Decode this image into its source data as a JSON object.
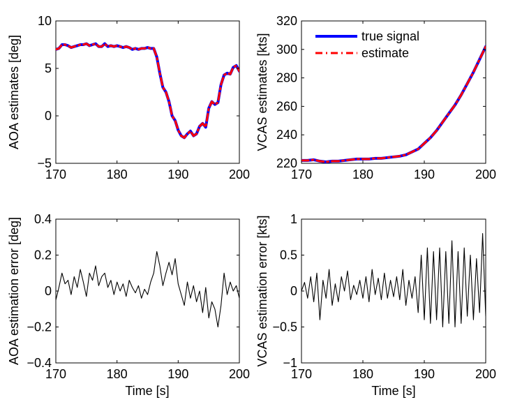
{
  "chart_data": [
    {
      "id": "aoa-estimates",
      "type": "line",
      "xlabel": "",
      "ylabel": "AOA estimates [deg]",
      "xlim": [
        170,
        200
      ],
      "ylim": [
        -5,
        10
      ],
      "xticks": [
        170,
        180,
        190,
        200
      ],
      "yticks": [
        -5,
        0,
        5,
        10
      ],
      "series": [
        {
          "name": "true signal",
          "color": "#0000ff",
          "style": "solid",
          "x": [
            170,
            170.5,
            171,
            171.5,
            172,
            172.5,
            173,
            173.5,
            174,
            174.5,
            175,
            175.5,
            176,
            176.5,
            177,
            177.5,
            178,
            178.5,
            179,
            179.5,
            180,
            180.5,
            181,
            181.5,
            182,
            182.5,
            183,
            183.5,
            184,
            184.5,
            185,
            185.5,
            186,
            186.5,
            187,
            187.5,
            188,
            188.5,
            189,
            189.5,
            190,
            190.5,
            191,
            191.5,
            192,
            192.5,
            193,
            193.5,
            194,
            194.5,
            195,
            195.5,
            196,
            196.5,
            197,
            197.5,
            198,
            198.5,
            199,
            199.5,
            200
          ],
          "y": [
            7.0,
            7.1,
            7.5,
            7.5,
            7.4,
            7.2,
            7.3,
            7.4,
            7.5,
            7.5,
            7.6,
            7.4,
            7.5,
            7.6,
            7.3,
            7.3,
            7.6,
            7.3,
            7.4,
            7.3,
            7.4,
            7.3,
            7.2,
            7.3,
            7.2,
            7.0,
            7.1,
            7.0,
            7.1,
            7.1,
            7.2,
            7.1,
            7.1,
            6.2,
            4.5,
            3.0,
            2.5,
            1.5,
            0.0,
            -0.5,
            -1.5,
            -2.1,
            -2.3,
            -1.9,
            -1.6,
            -2.1,
            -1.9,
            -1.1,
            -0.8,
            -1.2,
            0.8,
            1.5,
            1.2,
            1.4,
            3.3,
            4.3,
            4.5,
            4.4,
            5.1,
            5.3,
            4.7
          ]
        },
        {
          "name": "estimate",
          "color": "#ff0000",
          "style": "dashdot",
          "x": [
            170,
            170.5,
            171,
            171.5,
            172,
            172.5,
            173,
            173.5,
            174,
            174.5,
            175,
            175.5,
            176,
            176.5,
            177,
            177.5,
            178,
            178.5,
            179,
            179.5,
            180,
            180.5,
            181,
            181.5,
            182,
            182.5,
            183,
            183.5,
            184,
            184.5,
            185,
            185.5,
            186,
            186.5,
            187,
            187.5,
            188,
            188.5,
            189,
            189.5,
            190,
            190.5,
            191,
            191.5,
            192,
            192.5,
            193,
            193.5,
            194,
            194.5,
            195,
            195.5,
            196,
            196.5,
            197,
            197.5,
            198,
            198.5,
            199,
            199.5,
            200
          ],
          "y": [
            7.0,
            7.1,
            7.5,
            7.5,
            7.4,
            7.2,
            7.3,
            7.4,
            7.5,
            7.5,
            7.6,
            7.4,
            7.5,
            7.6,
            7.3,
            7.3,
            7.6,
            7.3,
            7.4,
            7.3,
            7.4,
            7.3,
            7.2,
            7.3,
            7.2,
            7.0,
            7.1,
            7.0,
            7.1,
            7.1,
            7.2,
            7.1,
            7.1,
            6.2,
            4.5,
            3.0,
            2.5,
            1.5,
            0.0,
            -0.5,
            -1.5,
            -2.1,
            -2.3,
            -1.9,
            -1.6,
            -2.1,
            -1.9,
            -1.1,
            -0.8,
            -1.2,
            0.8,
            1.5,
            1.2,
            1.4,
            3.3,
            4.3,
            4.5,
            4.4,
            5.1,
            5.3,
            4.7
          ]
        }
      ]
    },
    {
      "id": "vcas-estimates",
      "type": "line",
      "xlabel": "",
      "ylabel": "VCAS estimates [kts]",
      "xlim": [
        170,
        200
      ],
      "ylim": [
        220,
        320
      ],
      "xticks": [
        170,
        180,
        190,
        200
      ],
      "yticks": [
        220,
        240,
        260,
        280,
        300,
        320
      ],
      "legend": {
        "placement": "top-left",
        "entries": [
          "true signal",
          "estimate"
        ]
      },
      "series": [
        {
          "name": "true signal",
          "color": "#0000ff",
          "style": "solid",
          "x": [
            170,
            171,
            172,
            173,
            174,
            175,
            176,
            177,
            178,
            179,
            180,
            181,
            182,
            183,
            184,
            185,
            186,
            187,
            188,
            189,
            190,
            191,
            192,
            193,
            194,
            195,
            196,
            197,
            198,
            199,
            200
          ],
          "y": [
            222,
            222,
            222.5,
            221.5,
            221,
            221.5,
            221.5,
            222,
            222.5,
            223,
            223,
            223,
            223.5,
            223.5,
            224,
            224.5,
            225,
            226,
            228,
            230,
            234,
            238,
            243,
            249,
            255,
            261,
            268,
            276,
            284,
            293,
            302
          ]
        },
        {
          "name": "estimate",
          "color": "#ff0000",
          "style": "dashdot",
          "x": [
            170,
            171,
            172,
            173,
            174,
            175,
            176,
            177,
            178,
            179,
            180,
            181,
            182,
            183,
            184,
            185,
            186,
            187,
            188,
            189,
            190,
            191,
            192,
            193,
            194,
            195,
            196,
            197,
            198,
            199,
            200
          ],
          "y": [
            222,
            222,
            222.5,
            221.5,
            221,
            221.5,
            221.5,
            222,
            222.5,
            223,
            223,
            223,
            223.5,
            223.5,
            224,
            224.5,
            225,
            226,
            228,
            230,
            234,
            238,
            243,
            249,
            255,
            261,
            268,
            276,
            284,
            293,
            302
          ]
        }
      ]
    },
    {
      "id": "aoa-error",
      "type": "line",
      "xlabel": "Time [s]",
      "ylabel": "AOA estimation error [deg]",
      "xlim": [
        170,
        200
      ],
      "ylim": [
        -0.4,
        0.4
      ],
      "xticks": [
        170,
        180,
        190,
        200
      ],
      "yticks": [
        -0.4,
        -0.2,
        0,
        0.2,
        0.4
      ],
      "series": [
        {
          "name": "",
          "color": "#000000",
          "style": "solid",
          "x": [
            170,
            170.5,
            171,
            171.5,
            172,
            172.5,
            173,
            173.5,
            174,
            174.5,
            175,
            175.5,
            176,
            176.5,
            177,
            177.5,
            178,
            178.5,
            179,
            179.5,
            180,
            180.5,
            181,
            181.5,
            182,
            182.5,
            183,
            183.5,
            184,
            184.5,
            185,
            185.5,
            186,
            186.5,
            187,
            187.5,
            188,
            188.5,
            189,
            189.5,
            190,
            190.5,
            191,
            191.5,
            192,
            192.5,
            193,
            193.5,
            194,
            194.5,
            195,
            195.5,
            196,
            196.5,
            197,
            197.5,
            198,
            198.5,
            199,
            199.5,
            200
          ],
          "y": [
            -0.05,
            0.02,
            0.1,
            0.04,
            0.06,
            -0.02,
            0.08,
            0.02,
            0.12,
            0.05,
            -0.03,
            0.1,
            0.06,
            0.14,
            0.03,
            0.08,
            0.1,
            0.02,
            0.06,
            -0.02,
            0.05,
            0.0,
            0.04,
            -0.03,
            0.06,
            0.02,
            -0.01,
            0.03,
            -0.04,
            0.01,
            -0.02,
            0.05,
            0.1,
            0.22,
            0.14,
            0.03,
            0.1,
            0.16,
            0.09,
            0.18,
            0.04,
            -0.02,
            -0.08,
            0.05,
            -0.04,
            0.03,
            -0.06,
            0.0,
            -0.12,
            0.02,
            -0.15,
            -0.06,
            -0.1,
            -0.2,
            -0.08,
            0.1,
            -0.02,
            0.05,
            0.0,
            0.03,
            -0.04
          ]
        }
      ]
    },
    {
      "id": "vcas-error",
      "type": "line",
      "xlabel": "Time [s]",
      "ylabel": "VCAS estimation error [kts]",
      "xlim": [
        170,
        200
      ],
      "ylim": [
        -1,
        1
      ],
      "xticks": [
        170,
        180,
        190,
        200
      ],
      "yticks": [
        -1,
        -0.5,
        0,
        0.5,
        1
      ],
      "series": [
        {
          "name": "",
          "color": "#000000",
          "style": "solid",
          "x": [
            170,
            170.5,
            171,
            171.5,
            172,
            172.5,
            173,
            173.5,
            174,
            174.5,
            175,
            175.5,
            176,
            176.5,
            177,
            177.5,
            178,
            178.5,
            179,
            179.5,
            180,
            180.5,
            181,
            181.5,
            182,
            182.5,
            183,
            183.5,
            184,
            184.5,
            185,
            185.5,
            186,
            186.5,
            187,
            187.5,
            188,
            188.5,
            189,
            189.5,
            190,
            190.5,
            191,
            191.5,
            192,
            192.5,
            193,
            193.5,
            194,
            194.5,
            195,
            195.5,
            196,
            196.5,
            197,
            197.5,
            198,
            198.5,
            199,
            199.5,
            200
          ],
          "y": [
            0.0,
            0.12,
            -0.1,
            0.2,
            -0.15,
            0.25,
            -0.4,
            0.15,
            -0.1,
            0.3,
            -0.2,
            0.1,
            -0.15,
            0.2,
            0.0,
            0.28,
            -0.12,
            0.08,
            -0.05,
            0.15,
            -0.1,
            0.2,
            -0.15,
            0.3,
            -0.05,
            0.18,
            -0.12,
            0.25,
            -0.1,
            0.15,
            -0.08,
            0.2,
            -0.12,
            0.3,
            -0.2,
            0.15,
            -0.1,
            0.2,
            -0.3,
            0.5,
            -0.4,
            0.6,
            -0.45,
            0.55,
            -0.4,
            0.6,
            -0.5,
            0.55,
            -0.45,
            0.7,
            -0.5,
            0.55,
            -0.45,
            0.6,
            -0.35,
            0.5,
            -0.4,
            0.45,
            -0.3,
            0.8,
            -0.35
          ]
        }
      ]
    }
  ]
}
